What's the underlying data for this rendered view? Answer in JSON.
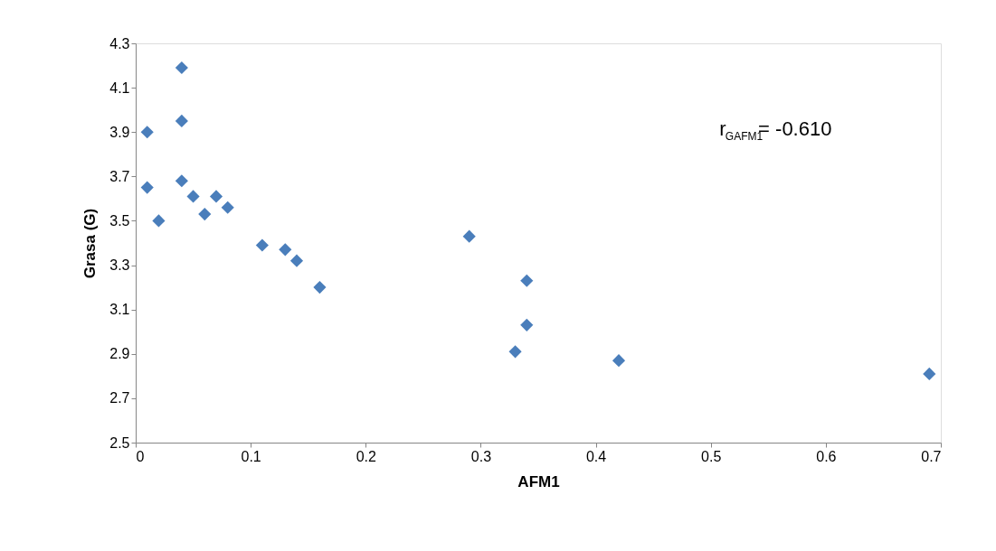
{
  "chart_data": {
    "type": "scatter",
    "xlabel": "AFM1",
    "ylabel": "Grasa (G)",
    "x": [
      0.01,
      0.04,
      0.04,
      0.01,
      0.04,
      0.02,
      0.05,
      0.07,
      0.06,
      0.08,
      0.11,
      0.13,
      0.14,
      0.16,
      0.29,
      0.34,
      0.34,
      0.33,
      0.42,
      0.69
    ],
    "series": [
      {
        "color": "#4a7ebb",
        "values": [
          3.9,
          4.19,
          3.95,
          3.65,
          3.68,
          3.5,
          3.61,
          3.61,
          3.53,
          3.56,
          3.39,
          3.37,
          3.32,
          3.2,
          3.43,
          3.23,
          3.03,
          2.91,
          2.87,
          2.81
        ]
      }
    ],
    "xlim": [
      0,
      0.7
    ],
    "xticks": [
      0,
      0.1,
      0.2,
      0.3,
      0.4,
      0.5,
      0.6,
      0.7
    ],
    "ylim": [
      2.5,
      4.3
    ],
    "yticks": [
      2.5,
      2.7,
      2.9,
      3.1,
      3.3,
      3.5,
      3.7,
      3.9,
      4.1,
      4.3
    ],
    "annotations": [
      "r$_{GAFM1}$= -0.610"
    ],
    "marker": "diamond",
    "grid": false
  }
}
